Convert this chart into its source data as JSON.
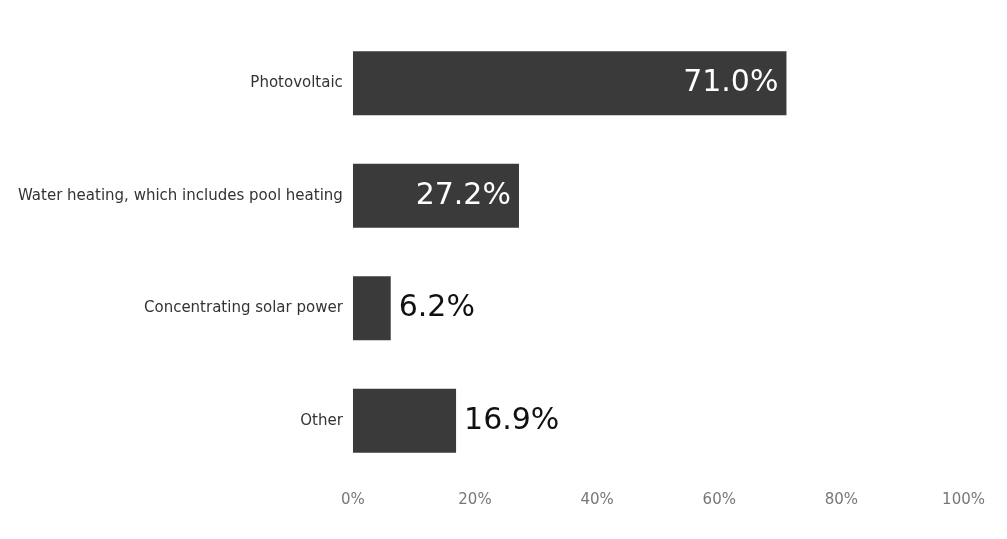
{
  "chart_data": {
    "type": "bar",
    "orientation": "horizontal",
    "categories": [
      "Photovoltaic",
      "Water heating, which includes pool heating",
      "Concentrating solar power",
      "Other"
    ],
    "values": [
      71.0,
      27.2,
      6.2,
      16.9
    ],
    "value_labels": [
      "71.0%",
      "27.2%",
      "6.2%",
      "16.9%"
    ],
    "color": "#3a3a3a",
    "xlim": [
      0,
      100
    ],
    "xticks": [
      {
        "value": 0,
        "label": "0%"
      },
      {
        "value": 20,
        "label": "20%"
      },
      {
        "value": 40,
        "label": "40%"
      },
      {
        "value": 60,
        "label": "60%"
      },
      {
        "value": 80,
        "label": "80%"
      },
      {
        "value": 100,
        "label": "100%"
      }
    ],
    "grid": false,
    "legend": false
  }
}
